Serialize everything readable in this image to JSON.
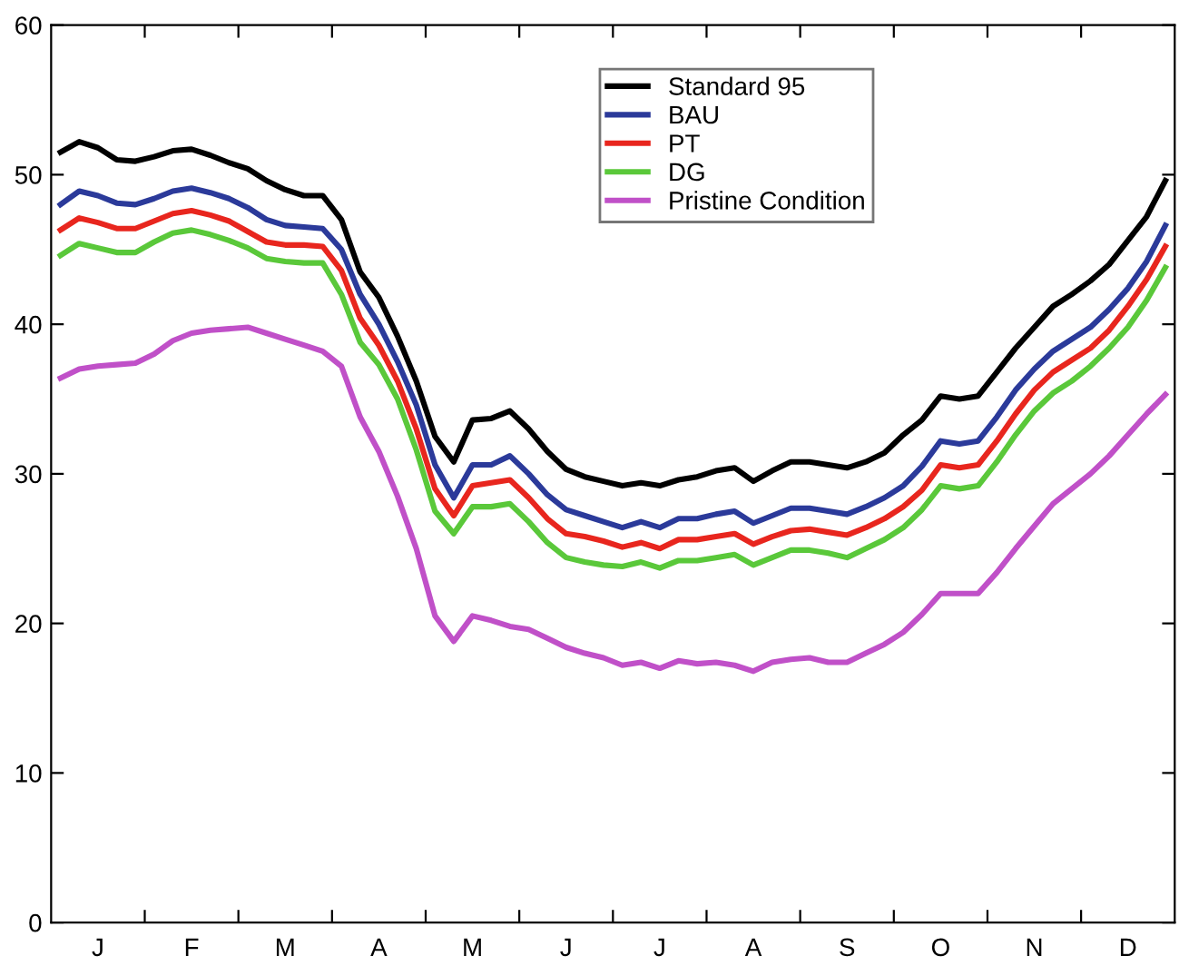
{
  "chart_data": {
    "type": "line",
    "categories": [
      null,
      null,
      "J",
      null,
      null,
      null,
      null,
      "F",
      null,
      null,
      null,
      null,
      "M",
      null,
      null,
      null,
      null,
      "A",
      null,
      null,
      null,
      null,
      "M",
      null,
      null,
      null,
      null,
      "J",
      null,
      null,
      null,
      null,
      "J",
      null,
      null,
      null,
      null,
      "A",
      null,
      null,
      null,
      null,
      "S",
      null,
      null,
      null,
      null,
      "O",
      null,
      null,
      null,
      null,
      "N",
      null,
      null,
      null,
      null,
      "D",
      null,
      null
    ],
    "series": [
      {
        "name": "Standard 95",
        "color": "#000000",
        "values": [
          51.5,
          52.2,
          51.8,
          51.0,
          50.9,
          51.2,
          51.6,
          51.7,
          51.3,
          50.8,
          50.4,
          49.6,
          49.0,
          48.6,
          48.6,
          47.0,
          43.5,
          41.8,
          39.2,
          36.2,
          32.5,
          30.8,
          33.6,
          33.7,
          34.2,
          33.0,
          31.5,
          30.3,
          29.8,
          29.5,
          29.2,
          29.4,
          29.2,
          29.6,
          29.8,
          30.2,
          30.4,
          29.5,
          30.2,
          30.8,
          30.8,
          30.6,
          30.4,
          30.8,
          31.4,
          32.6,
          33.6,
          35.2,
          35.0,
          35.2,
          36.8,
          38.4,
          39.8,
          41.2,
          42.0,
          42.9,
          44.0,
          45.6,
          47.2,
          49.6
        ]
      },
      {
        "name": "BAU",
        "color": "#2b3a9a",
        "values": [
          48.0,
          48.9,
          48.6,
          48.1,
          48.0,
          48.4,
          48.9,
          49.1,
          48.8,
          48.4,
          47.8,
          47.0,
          46.6,
          46.5,
          46.4,
          45.0,
          42.0,
          40.0,
          37.5,
          34.6,
          30.6,
          28.4,
          30.6,
          30.6,
          31.2,
          30.0,
          28.6,
          27.6,
          27.2,
          26.8,
          26.4,
          26.8,
          26.4,
          27.0,
          27.0,
          27.3,
          27.5,
          26.7,
          27.2,
          27.7,
          27.7,
          27.5,
          27.3,
          27.8,
          28.4,
          29.2,
          30.5,
          32.2,
          32.0,
          32.2,
          33.8,
          35.6,
          37.0,
          38.2,
          39.0,
          39.8,
          41.0,
          42.4,
          44.2,
          46.6
        ]
      },
      {
        "name": "PT",
        "color": "#e8261e",
        "values": [
          46.3,
          47.1,
          46.8,
          46.4,
          46.4,
          46.9,
          47.4,
          47.6,
          47.3,
          46.9,
          46.2,
          45.5,
          45.3,
          45.3,
          45.2,
          43.6,
          40.4,
          38.6,
          36.2,
          33.0,
          29.0,
          27.2,
          29.2,
          29.4,
          29.6,
          28.4,
          27.0,
          26.0,
          25.8,
          25.5,
          25.1,
          25.4,
          25.0,
          25.6,
          25.6,
          25.8,
          26.0,
          25.3,
          25.8,
          26.2,
          26.3,
          26.1,
          25.9,
          26.4,
          27.0,
          27.8,
          28.9,
          30.6,
          30.4,
          30.6,
          32.2,
          34.0,
          35.6,
          36.8,
          37.6,
          38.4,
          39.6,
          41.2,
          43.0,
          45.2
        ]
      },
      {
        "name": "DG",
        "color": "#5ac83a",
        "values": [
          44.6,
          45.4,
          45.1,
          44.8,
          44.8,
          45.5,
          46.1,
          46.3,
          46.0,
          45.6,
          45.1,
          44.4,
          44.2,
          44.1,
          44.1,
          42.0,
          38.8,
          37.3,
          35.0,
          31.6,
          27.5,
          26.0,
          27.8,
          27.8,
          28.0,
          26.8,
          25.4,
          24.4,
          24.1,
          23.9,
          23.8,
          24.1,
          23.7,
          24.2,
          24.2,
          24.4,
          24.6,
          23.9,
          24.4,
          24.9,
          24.9,
          24.7,
          24.4,
          25.0,
          25.6,
          26.4,
          27.6,
          29.2,
          29.0,
          29.2,
          30.8,
          32.6,
          34.2,
          35.4,
          36.2,
          37.2,
          38.4,
          39.8,
          41.6,
          43.8
        ]
      },
      {
        "name": "Pristine Condition",
        "color": "#c050c8",
        "values": [
          36.4,
          37.0,
          37.2,
          37.3,
          37.4,
          38.0,
          38.9,
          39.4,
          39.6,
          39.7,
          39.8,
          39.4,
          39.0,
          38.6,
          38.2,
          37.2,
          33.8,
          31.5,
          28.5,
          25.0,
          20.5,
          18.8,
          20.5,
          20.2,
          19.8,
          19.6,
          19.0,
          18.4,
          18.0,
          17.7,
          17.2,
          17.4,
          17.0,
          17.5,
          17.3,
          17.4,
          17.2,
          16.8,
          17.4,
          17.6,
          17.7,
          17.4,
          17.4,
          18.0,
          18.6,
          19.4,
          20.6,
          22.0,
          22.0,
          22.0,
          23.4,
          25.0,
          26.5,
          28.0,
          29.0,
          30.0,
          31.2,
          32.6,
          34.0,
          35.3
        ]
      }
    ],
    "ylim": [
      0,
      60
    ],
    "yticks": [
      0,
      10,
      20,
      30,
      40,
      50,
      60
    ],
    "legend": "top",
    "line_style": "solid",
    "marker": "none"
  }
}
